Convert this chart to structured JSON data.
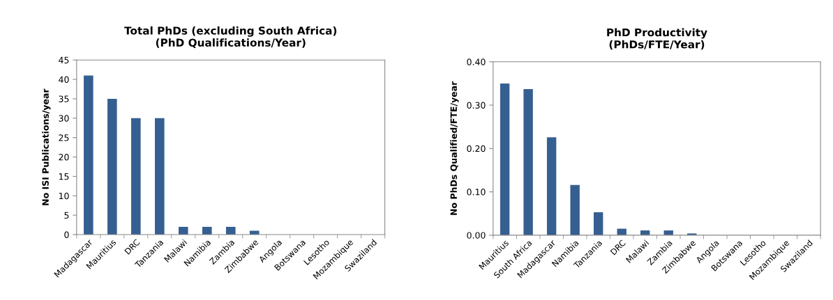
{
  "chart_data": [
    {
      "type": "bar",
      "title": "Total PhDs (excluding South Africa)\n(PhD Qualifications/Year)",
      "ylabel": "No ISI Publications/year",
      "categories": [
        "Madagascar",
        "Mauritius",
        "DRC",
        "Tanzania",
        "Malawi",
        "Namibia",
        "Zambia",
        "Zimbabwe",
        "Angola",
        "Botswana",
        "Lesotho",
        "Mozambique",
        "Swaziland"
      ],
      "values": [
        41,
        35,
        30,
        30,
        2,
        2,
        2,
        1,
        0,
        0,
        0,
        0,
        0
      ],
      "color": "#365f91",
      "ylim": [
        0,
        45
      ],
      "yticks": [
        0,
        5,
        10,
        15,
        20,
        25,
        30,
        35,
        40,
        45
      ],
      "grid": false,
      "legend": false
    },
    {
      "type": "bar",
      "title": "PhD Productivity\n(PhDs/FTE/Year)",
      "ylabel": "No PhDs Qualified/FTE/year",
      "categories": [
        "Mauritius",
        "South Africa",
        "Madagascar",
        "Namibia",
        "Tanzania",
        "DRC",
        "Malawi",
        "Zambia",
        "Zimbabwe",
        "Angola",
        "Botswana",
        "Lesotho",
        "Mozambique",
        "Swaziland"
      ],
      "values": [
        0.35,
        0.337,
        0.226,
        0.116,
        0.053,
        0.015,
        0.011,
        0.011,
        0.004,
        0,
        0,
        0,
        0,
        0
      ],
      "color": "#365f91",
      "ylim": [
        0,
        0.4
      ],
      "yticks": [
        {
          "value": 0,
          "label": "0.00"
        },
        {
          "value": 0.1,
          "label": "0.10"
        },
        {
          "value": 0.2,
          "label": "0.20"
        },
        {
          "value": 0.3,
          "label": "0.30"
        },
        {
          "value": 0.4,
          "label": "0.40"
        }
      ],
      "grid": false,
      "legend": false
    }
  ]
}
